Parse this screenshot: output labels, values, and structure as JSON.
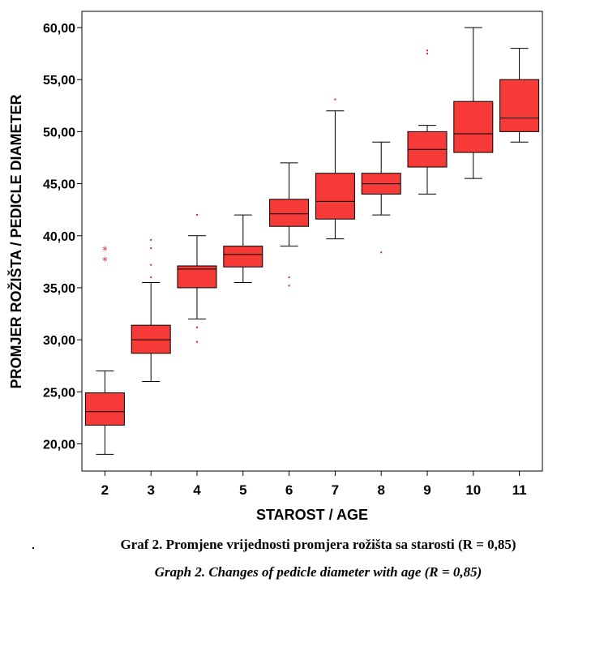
{
  "chart_data": {
    "type": "box",
    "xlabel": "STAROST / AGE",
    "ylabel": "PROMJER ROŽIŠTA / PEDICLE DIAMETER",
    "ylim": [
      17.5,
      62.0
    ],
    "yticks": [
      20,
      25,
      30,
      35,
      40,
      45,
      50,
      55,
      60
    ],
    "ytick_labels": [
      "20,00",
      "25,00",
      "30,00",
      "35,00",
      "40,00",
      "45,00",
      "50,00",
      "55,00",
      "60,00"
    ],
    "categories": [
      "2",
      "3",
      "4",
      "5",
      "6",
      "7",
      "8",
      "9",
      "10",
      "11"
    ],
    "color": "#f53a38",
    "outlier_color": "#e0262a",
    "grid": false,
    "boxes": [
      {
        "min": 19.0,
        "q1": 21.8,
        "median": 23.1,
        "q3": 24.9,
        "max": 27.0,
        "outliers": [],
        "extremes": [
          38.6,
          37.6
        ]
      },
      {
        "min": 26.0,
        "q1": 28.7,
        "median": 30.0,
        "q3": 31.4,
        "max": 35.5,
        "outliers": [
          39.6,
          38.8,
          37.2,
          36.0
        ],
        "extremes": []
      },
      {
        "min": 32.0,
        "q1": 35.0,
        "median": 36.8,
        "q3": 37.1,
        "max": 40.0,
        "outliers": [
          42.0,
          31.2,
          29.8
        ],
        "extremes": []
      },
      {
        "min": 35.5,
        "q1": 37.0,
        "median": 38.2,
        "q3": 39.0,
        "max": 42.0,
        "outliers": [],
        "extremes": []
      },
      {
        "min": 39.0,
        "q1": 40.9,
        "median": 42.1,
        "q3": 43.5,
        "max": 47.0,
        "outliers": [
          36.0,
          35.2
        ],
        "extremes": []
      },
      {
        "min": 39.7,
        "q1": 41.6,
        "median": 43.3,
        "q3": 46.0,
        "max": 52.0,
        "outliers": [
          53.1
        ],
        "extremes": []
      },
      {
        "min": 42.0,
        "q1": 44.0,
        "median": 45.0,
        "q3": 46.0,
        "max": 49.0,
        "outliers": [
          38.4
        ],
        "extremes": []
      },
      {
        "min": 44.0,
        "q1": 46.6,
        "median": 48.3,
        "q3": 50.0,
        "max": 50.6,
        "outliers": [
          57.8,
          57.5
        ],
        "extremes": []
      },
      {
        "min": 45.5,
        "q1": 48.0,
        "median": 49.8,
        "q3": 52.9,
        "max": 60.0,
        "outliers": [],
        "extremes": []
      },
      {
        "min": 49.0,
        "q1": 50.0,
        "median": 51.3,
        "q3": 55.0,
        "max": 58.0,
        "outliers": [],
        "extremes": []
      }
    ]
  },
  "caption": {
    "line1": "Graf  2. Promjene vrijednosti promjera rožišta sa starosti (R = 0,85)",
    "line2": "Graph 2. Changes of pedicle diameter with age (R = 0,85)"
  }
}
